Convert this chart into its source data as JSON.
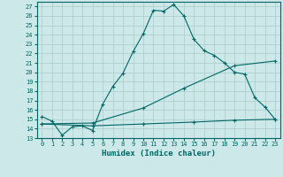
{
  "xlabel": "Humidex (Indice chaleur)",
  "background_color": "#cce8e8",
  "grid_color": "#aacccc",
  "line_color": "#006666",
  "xlim": [
    -0.5,
    23.5
  ],
  "ylim": [
    13,
    27.5
  ],
  "yticks": [
    13,
    14,
    15,
    16,
    17,
    18,
    19,
    20,
    21,
    22,
    23,
    24,
    25,
    26,
    27
  ],
  "xticks": [
    0,
    1,
    2,
    3,
    4,
    5,
    6,
    7,
    8,
    9,
    10,
    11,
    12,
    13,
    14,
    15,
    16,
    17,
    18,
    19,
    20,
    21,
    22,
    23
  ],
  "series1_x": [
    0,
    1,
    2,
    3,
    4,
    5,
    6,
    7,
    8,
    9,
    10,
    11,
    12,
    13,
    14,
    15,
    16,
    17,
    18,
    19,
    20,
    21,
    22,
    23
  ],
  "series1_y": [
    15.3,
    14.8,
    13.3,
    14.2,
    14.3,
    13.8,
    16.6,
    18.5,
    19.9,
    22.2,
    24.1,
    26.6,
    26.5,
    27.2,
    26.0,
    23.5,
    22.3,
    21.8,
    21.0,
    20.0,
    19.8,
    17.3,
    16.3,
    15.0
  ],
  "series2_x": [
    0,
    5,
    10,
    15,
    19,
    23
  ],
  "series2_y": [
    14.5,
    14.3,
    14.5,
    14.7,
    14.9,
    15.0
  ],
  "series3_x": [
    0,
    5,
    10,
    14,
    19,
    23
  ],
  "series3_y": [
    14.5,
    14.6,
    16.2,
    18.3,
    20.7,
    21.2
  ]
}
